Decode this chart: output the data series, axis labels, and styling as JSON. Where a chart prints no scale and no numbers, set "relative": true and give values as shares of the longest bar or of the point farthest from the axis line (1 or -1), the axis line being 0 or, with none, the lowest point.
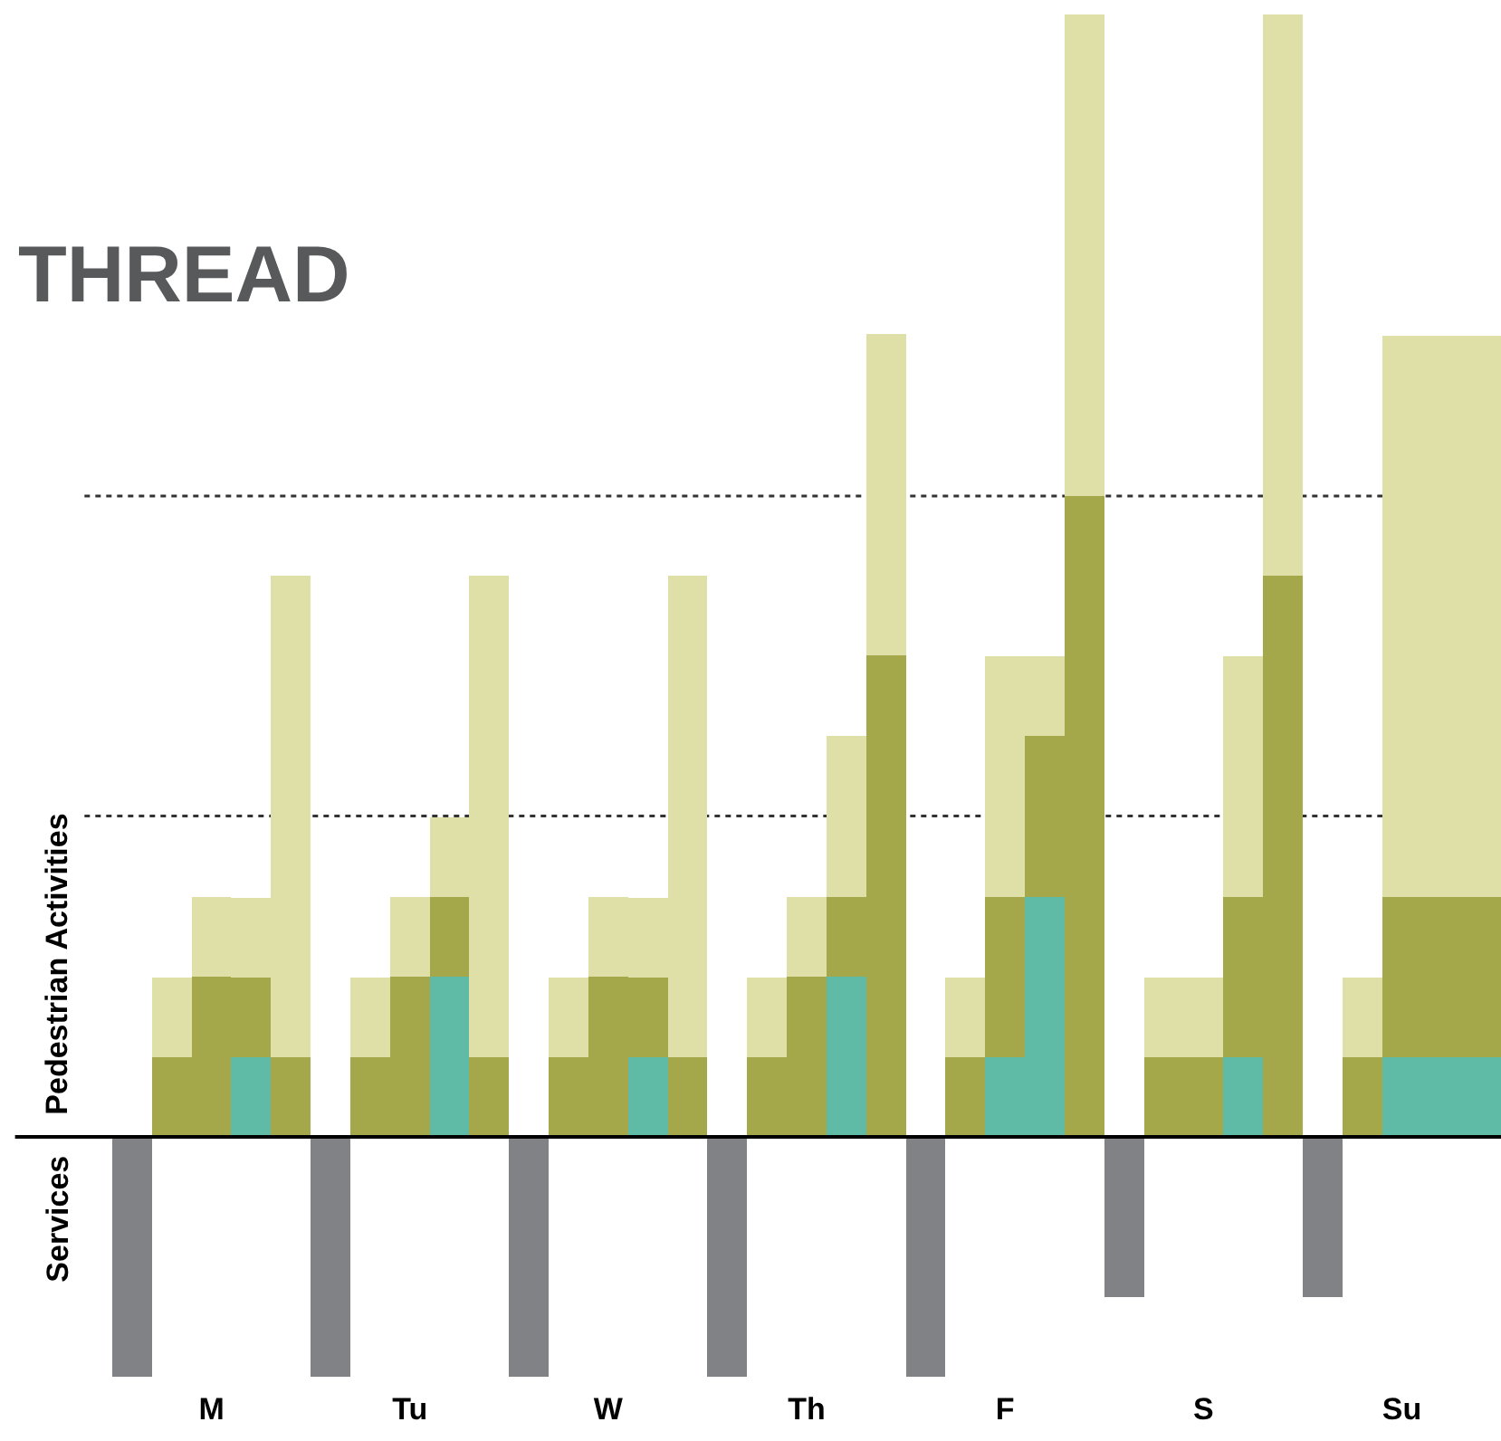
{
  "chart_data": {
    "type": "bar",
    "title": "THREAD",
    "ylabel": "Pedestrian Activities",
    "annotations": [
      "Services"
    ],
    "relative": true,
    "stacked": true,
    "categories": [
      null,
      null,
      "M",
      null,
      null,
      null,
      null,
      "Tu",
      null,
      null,
      null,
      null,
      "W",
      null,
      null,
      null,
      null,
      "Th",
      null,
      null,
      null,
      null,
      "F",
      null,
      null,
      null,
      null,
      "S",
      null,
      null,
      null,
      null,
      "Su",
      null,
      null
    ],
    "series": [
      {
        "color": "#5fbba6",
        "values": [
          null,
          null,
          null,
          0.071,
          null,
          null,
          null,
          null,
          0.143,
          null,
          null,
          null,
          null,
          0.071,
          null,
          null,
          null,
          null,
          0.143,
          null,
          null,
          null,
          0.071,
          0.214,
          null,
          null,
          null,
          null,
          0.071,
          null,
          null,
          null,
          0.071,
          0.071,
          0.071
        ]
      },
      {
        "color": "#a5a84a",
        "values": [
          null,
          0.071,
          0.143,
          0.071,
          0.071,
          null,
          0.071,
          0.143,
          0.071,
          0.071,
          null,
          0.071,
          0.143,
          0.071,
          0.071,
          null,
          0.071,
          0.143,
          0.071,
          0.429,
          null,
          0.071,
          0.143,
          0.143,
          0.571,
          null,
          0.071,
          0.071,
          0.143,
          0.5,
          null,
          0.071,
          0.143,
          0.143,
          0.143
        ]
      },
      {
        "color": "#dfe0a8",
        "values": [
          null,
          0.071,
          0.071,
          0.071,
          0.429,
          null,
          0.071,
          0.071,
          0.071,
          0.429,
          null,
          0.071,
          0.071,
          0.071,
          0.429,
          null,
          0.071,
          0.071,
          0.143,
          0.286,
          null,
          0.071,
          0.214,
          0.071,
          0.429,
          null,
          0.071,
          0.071,
          0.214,
          0.5,
          null,
          0.071,
          0.5,
          0.5,
          0.5
        ]
      },
      {
        "color": "#818286",
        "values": [
          -0.214,
          null,
          null,
          null,
          null,
          -0.214,
          null,
          null,
          null,
          null,
          -0.214,
          null,
          null,
          null,
          null,
          -0.214,
          null,
          null,
          null,
          null,
          -0.214,
          null,
          null,
          null,
          null,
          -0.143,
          null,
          null,
          null,
          null,
          -0.143,
          null,
          null,
          null,
          null
        ]
      }
    ],
    "ref_lines": [
      {
        "axis": "y",
        "value": 0.286,
        "color": "#333333",
        "line_style": "dotted"
      },
      {
        "axis": "y",
        "value": 0.571,
        "color": "#333333",
        "line_style": "dotted"
      }
    ]
  }
}
